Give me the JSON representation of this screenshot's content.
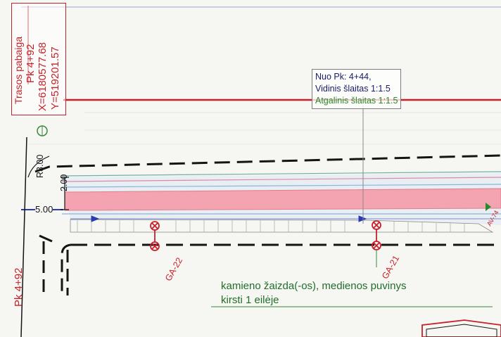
{
  "colors": {
    "red_line": "#c8202a",
    "pink_band": "#f4a3b0",
    "green_text": "#1f6f2a",
    "blue_line": "#2a3bb0",
    "dashed": "#141414"
  },
  "trace_end": {
    "title": "Trasos pabaiga",
    "station": "Pk 4+92",
    "x": "X=6180577.68",
    "y": "Y=519201.57"
  },
  "station_left": "Pk 4+92",
  "slope_note": {
    "line1": "Nuo Pk: 4+44,",
    "line2": "Vidinis šlaitas 1:1.5",
    "line3": "Atgalinis šlaitas 1:1.5"
  },
  "dimensions": {
    "radius": "R3.00",
    "width": "2.00",
    "offset": "5.00"
  },
  "trees": [
    {
      "id": "GA-22"
    },
    {
      "id": "GA-21"
    }
  ],
  "damage_note": {
    "line1": "kamieno žaizda(-os), medienos puvinys",
    "line2": "kirsti 1 eilėje"
  },
  "edge_label": "AV-74"
}
